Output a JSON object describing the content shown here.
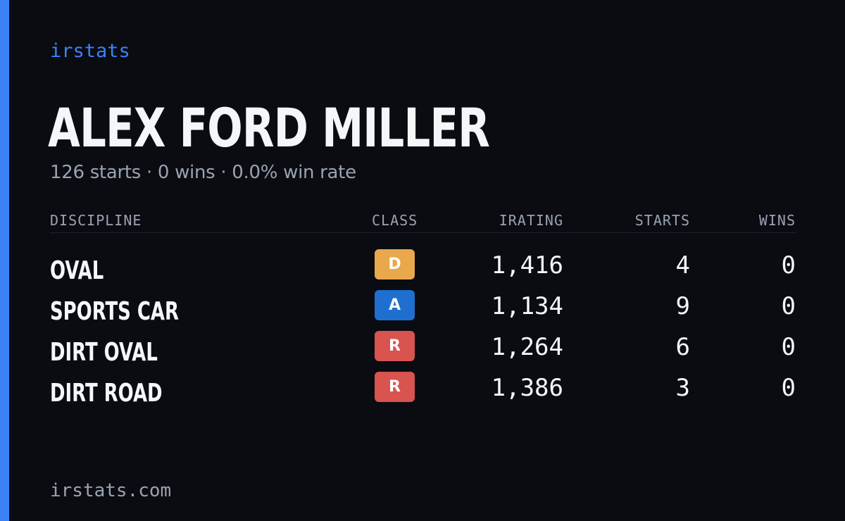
{
  "brand": "irstats",
  "driver": {
    "name": "ALEX FORD MILLER",
    "summary": "126 starts · 0 wins · 0.0% win rate"
  },
  "table": {
    "headers": {
      "discipline": "DISCIPLINE",
      "class": "CLASS",
      "irating": "IRATING",
      "starts": "STARTS",
      "wins": "WINS"
    },
    "rows": [
      {
        "discipline": "OVAL",
        "class": "D",
        "class_color": "#e9a84c",
        "irating": "1,416",
        "starts": "4",
        "wins": "0"
      },
      {
        "discipline": "SPORTS CAR",
        "class": "A",
        "class_color": "#1f6fd1",
        "irating": "1,134",
        "starts": "9",
        "wins": "0"
      },
      {
        "discipline": "DIRT OVAL",
        "class": "R",
        "class_color": "#d9534f",
        "irating": "1,264",
        "starts": "6",
        "wins": "0"
      },
      {
        "discipline": "DIRT ROAD",
        "class": "R",
        "class_color": "#d9534f",
        "irating": "1,386",
        "starts": "3",
        "wins": "0"
      }
    ]
  },
  "footer": {
    "url": "irstats.com"
  },
  "colors": {
    "background": "#0a0c12",
    "accent": "#3b82f6",
    "text_primary": "#f4f6fa",
    "text_muted": "#9aa3b2"
  }
}
